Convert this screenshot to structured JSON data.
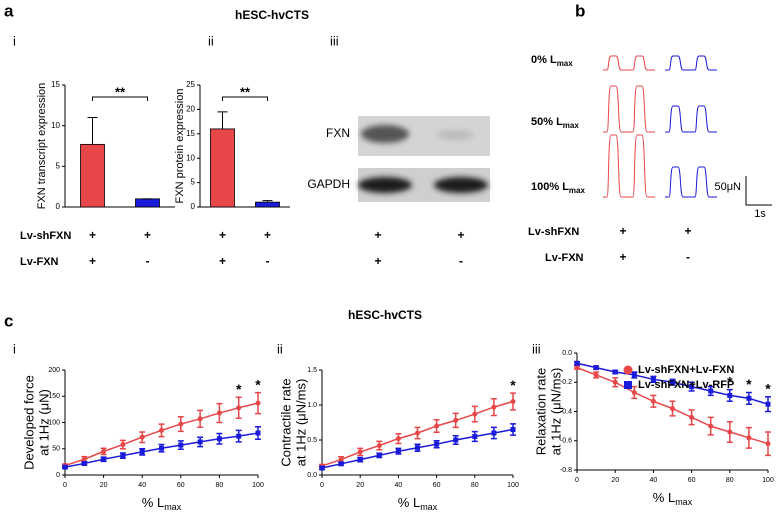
{
  "figure": {
    "panel_labels": [
      "a",
      "b",
      "c"
    ],
    "title_a": "hESC-hvCTS",
    "title_c": "hESC-hvCTS",
    "sublabels_a": [
      "i",
      "ii",
      "iii"
    ],
    "sublabels_c": [
      "i",
      "ii",
      "iii"
    ],
    "blot_labels": [
      "FXN",
      "GAPDH"
    ],
    "trace_rows": [
      {
        "label": "0% L",
        "sub": "max"
      },
      {
        "label": "50% L",
        "sub": "max"
      },
      {
        "label": "100% L",
        "sub": "max"
      }
    ],
    "scale_force": "50μN",
    "scale_time": "1s",
    "conditions_a": [
      {
        "label": "Lv-shFXN",
        "cells": [
          "+",
          "+",
          "+",
          "+",
          "+",
          "+"
        ]
      },
      {
        "label": "Lv-FXN",
        "cells": [
          "+",
          "-",
          "+",
          "-",
          "+",
          "-"
        ]
      }
    ],
    "conditions_b": [
      {
        "label": "Lv-shFXN",
        "cells": [
          "+",
          "+"
        ]
      },
      {
        "label": "Lv-FXN",
        "cells": [
          "+",
          "-"
        ]
      }
    ]
  },
  "chart_data": [
    {
      "type": "bar",
      "ylabel": "FXN transcript expression",
      "categories": [
        null,
        null
      ],
      "values": [
        7.7,
        1.0
      ],
      "errors": [
        3.3,
        0
      ],
      "colors": [
        "#e8474a",
        "#1a1adb"
      ],
      "ylim": [
        0,
        15
      ],
      "yticks": [
        0,
        5,
        10,
        15
      ],
      "significance": "**"
    },
    {
      "type": "bar",
      "ylabel": "FXN protein expression",
      "categories": [
        null,
        null
      ],
      "values": [
        16,
        1.0
      ],
      "errors": [
        3.5,
        0.3
      ],
      "colors": [
        "#e8474a",
        "#1a1adb"
      ],
      "ylim": [
        0,
        25
      ],
      "yticks": [
        0,
        5,
        10,
        15,
        20,
        25
      ],
      "significance": "**"
    },
    {
      "type": "line",
      "ylabel": [
        "Developed force",
        "at 1Hz (μN)"
      ],
      "xlabel": "% L",
      "xlabel_sub": "max",
      "x": [
        0,
        10,
        20,
        30,
        40,
        50,
        60,
        70,
        80,
        90,
        100
      ],
      "xlim": [
        0,
        100
      ],
      "xticks": [
        0,
        20,
        40,
        60,
        80,
        100
      ],
      "ylim": [
        0,
        200
      ],
      "yticks": [
        0,
        50,
        100,
        150,
        200
      ],
      "series": [
        {
          "color": "#e8474a",
          "marker": "circle",
          "values": [
            18,
            30,
            45,
            58,
            72,
            85,
            97,
            107,
            118,
            128,
            137
          ],
          "errors": [
            3,
            5,
            6,
            8,
            10,
            12,
            14,
            16,
            18,
            20,
            20
          ]
        },
        {
          "color": "#1a1adb",
          "marker": "square",
          "values": [
            15,
            22,
            30,
            37,
            44,
            51,
            57,
            63,
            69,
            74,
            80
          ],
          "errors": [
            2,
            3,
            4,
            5,
            6,
            7,
            8,
            9,
            10,
            11,
            12
          ]
        }
      ],
      "significance": "*",
      "significant_x": [
        90,
        100
      ]
    },
    {
      "type": "line",
      "ylabel": [
        "Contractile rate",
        "at 1Hz (μN/ms)"
      ],
      "xlabel": "% L",
      "xlabel_sub": "max",
      "x": [
        0,
        10,
        20,
        30,
        40,
        50,
        60,
        70,
        80,
        90,
        100
      ],
      "xlim": [
        0,
        100
      ],
      "xticks": [
        0,
        20,
        40,
        60,
        80,
        100
      ],
      "ylim": [
        0,
        1.5
      ],
      "yticks": [
        {
          "value": 0,
          "label": "0.0"
        },
        0.5,
        {
          "value": 1,
          "label": "1.0"
        },
        1.5
      ],
      "series": [
        {
          "color": "#e8474a",
          "marker": "circle",
          "values": [
            0.13,
            0.22,
            0.33,
            0.42,
            0.52,
            0.6,
            0.7,
            0.78,
            0.87,
            0.97,
            1.05
          ],
          "errors": [
            0.02,
            0.04,
            0.05,
            0.06,
            0.07,
            0.08,
            0.09,
            0.1,
            0.11,
            0.12,
            0.12
          ]
        },
        {
          "color": "#1a1adb",
          "marker": "square",
          "values": [
            0.1,
            0.16,
            0.22,
            0.28,
            0.34,
            0.39,
            0.44,
            0.5,
            0.55,
            0.6,
            0.65
          ],
          "errors": [
            0.02,
            0.02,
            0.03,
            0.03,
            0.04,
            0.05,
            0.05,
            0.06,
            0.07,
            0.08,
            0.08
          ]
        }
      ],
      "significance": "*",
      "significant_x": [
        100
      ]
    },
    {
      "type": "line",
      "ylabel": [
        "Relaxation rate",
        "at 1Hz (μN/ms)"
      ],
      "xlabel": "% L",
      "xlabel_sub": "max",
      "x": [
        0,
        10,
        20,
        30,
        40,
        50,
        60,
        70,
        80,
        90,
        100
      ],
      "xlim": [
        0,
        100
      ],
      "xticks": [
        0,
        20,
        40,
        60,
        80,
        100
      ],
      "ylim": [
        -0.8,
        0
      ],
      "yticks": [
        {
          "value": 0,
          "label": "0.0"
        },
        -0.2,
        -0.4,
        -0.6,
        -0.8
      ],
      "series": [
        {
          "name": "Lv-shFXN+Lv-FXN",
          "color": "#e8474a",
          "marker": "circle",
          "values": [
            -0.1,
            -0.15,
            -0.2,
            -0.27,
            -0.33,
            -0.38,
            -0.44,
            -0.5,
            -0.54,
            -0.58,
            -0.62
          ],
          "errors": [
            0.01,
            0.02,
            0.03,
            0.04,
            0.04,
            0.05,
            0.05,
            0.06,
            0.07,
            0.07,
            0.08
          ]
        },
        {
          "name": "Lv-shFXN+Lv-RFP",
          "color": "#1a1adb",
          "marker": "square",
          "values": [
            -0.07,
            -0.1,
            -0.13,
            -0.15,
            -0.18,
            -0.2,
            -0.23,
            -0.26,
            -0.29,
            -0.31,
            -0.35
          ],
          "errors": [
            0.01,
            0.01,
            0.01,
            0.02,
            0.02,
            0.02,
            0.03,
            0.03,
            0.04,
            0.04,
            0.05
          ]
        }
      ],
      "significance": "*",
      "significant_x": [
        80,
        90,
        100
      ],
      "legend": "upper right"
    }
  ]
}
